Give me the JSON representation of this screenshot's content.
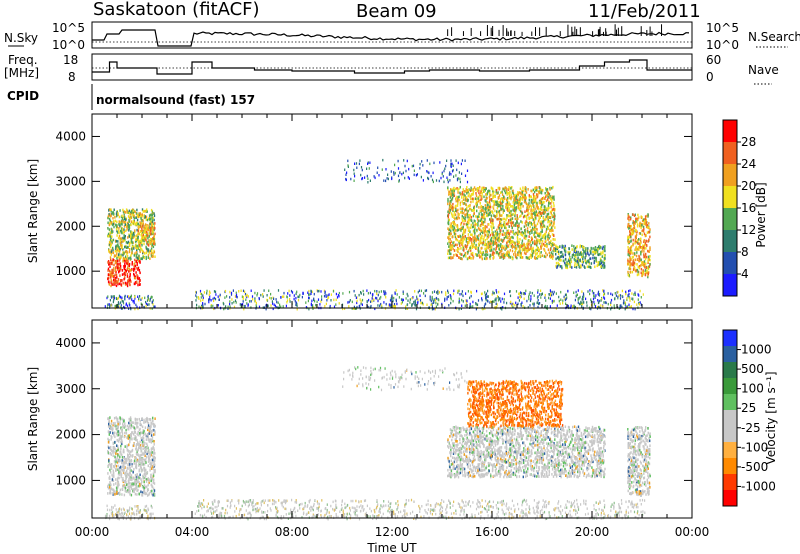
{
  "header": {
    "station": "Saskatoon (fitACF)",
    "beam": "Beam 09",
    "date": "11/Feb/2011"
  },
  "panels": {
    "nsky_label": "N.Sky",
    "nsky_ticks": [
      "10^5",
      "10^0"
    ],
    "nsearch_label": "N.Search",
    "nsearch_ticks": [
      "10^5",
      "10^0"
    ],
    "freq_label_1": "Freq.",
    "freq_label_2": "[MHz]",
    "freq_ticks": [
      "18",
      "8"
    ],
    "nave_label": "Nave",
    "nave_ticks": [
      "60",
      "0"
    ],
    "cpid_label": "CPID",
    "cpid_text": "normalsound (fast) 157"
  },
  "colors": {
    "power_scale": [
      "#1c1cff",
      "#234fb0",
      "#2e7d6e",
      "#52a852",
      "#f0e020",
      "#f0a020",
      "#f06020",
      "#ff0000"
    ],
    "velocity_scale": [
      "#ff0000",
      "#ff3a00",
      "#ff8a00",
      "#ffb040",
      "#c8c8c8",
      "#c8c8c8",
      "#60c060",
      "#3a9a3a",
      "#2a7a4a",
      "#2a60a0",
      "#1c30ff"
    ]
  },
  "chart_data": [
    {
      "type": "heatmap",
      "title": "",
      "xlabel": "Time UT",
      "ylabel": "Slant Range [km]",
      "xlim": [
        "00:00",
        "24:00"
      ],
      "x_ticks": [
        "00:00",
        "04:00",
        "08:00",
        "12:00",
        "16:00",
        "20:00",
        "00:00"
      ],
      "ylim": [
        180,
        4500
      ],
      "y_ticks": [
        "1000",
        "2000",
        "3000",
        "4000"
      ],
      "colorbar": {
        "label": "Power [dB]",
        "ticks": [
          "28",
          "24",
          "20",
          "16",
          "12",
          "8",
          "4"
        ],
        "range": [
          0,
          30
        ]
      },
      "regions": [
        {
          "t_start": 0.6,
          "t_end": 1.9,
          "range_min": 700,
          "range_max": 1300,
          "value": 28
        },
        {
          "t_start": 0.6,
          "t_end": 2.5,
          "range_min": 1300,
          "range_max": 2400,
          "value": 16
        },
        {
          "t_start": 1.8,
          "t_end": 2.5,
          "range_min": 1600,
          "range_max": 2100,
          "value": 20
        },
        {
          "t_start": 14.2,
          "t_end": 18.5,
          "range_min": 1300,
          "range_max": 2900,
          "value": 18
        },
        {
          "t_start": 18.5,
          "t_end": 20.5,
          "range_min": 1100,
          "range_max": 1600,
          "value": 12
        },
        {
          "t_start": 21.4,
          "t_end": 22.3,
          "range_min": 900,
          "range_max": 2300,
          "value": 20
        }
      ]
    },
    {
      "type": "heatmap",
      "title": "",
      "xlabel": "Time UT",
      "ylabel": "Slant Range [km]",
      "xlim": [
        "00:00",
        "24:00"
      ],
      "x_ticks": [
        "00:00",
        "04:00",
        "08:00",
        "12:00",
        "16:00",
        "20:00",
        "00:00"
      ],
      "ylim": [
        180,
        4500
      ],
      "y_ticks": [
        "1000",
        "2000",
        "3000",
        "4000"
      ],
      "colorbar": {
        "label": "Velocity [m s⁻¹]",
        "ticks": [
          "1000",
          "500",
          "100",
          "25",
          "-25",
          "-100",
          "-500",
          "-1000"
        ],
        "range": [
          -1000,
          1000
        ]
      },
      "regions": [
        {
          "t_start": 0.6,
          "t_end": 2.5,
          "range_min": 700,
          "range_max": 2400,
          "value": 0
        },
        {
          "t_start": 14.2,
          "t_end": 20.5,
          "range_min": 1100,
          "range_max": 2200,
          "value": 0
        },
        {
          "t_start": 15.0,
          "t_end": 18.8,
          "range_min": 2200,
          "range_max": 3200,
          "value": -300
        },
        {
          "t_start": 21.4,
          "t_end": 22.3,
          "range_min": 700,
          "range_max": 2200,
          "value": 0
        }
      ]
    }
  ]
}
